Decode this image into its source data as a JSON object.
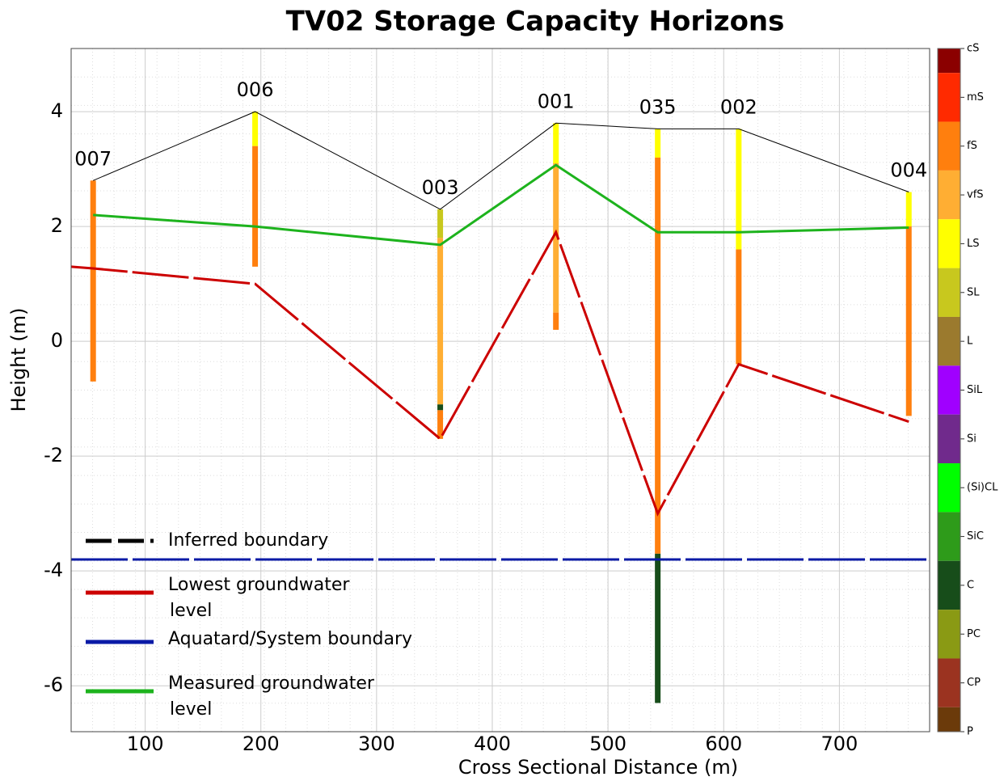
{
  "chart_data": {
    "type": "cross-section",
    "title": "TV02 Storage Capacity Horizons",
    "x_label": "Cross Sectional Distance (m)",
    "y_label": "Height (m)",
    "xlim": [
      36,
      778
    ],
    "ylim": [
      -6.8,
      5.1
    ],
    "xticks": [
      100,
      200,
      300,
      400,
      500,
      600,
      700
    ],
    "yticks": [
      -6,
      -4,
      -2,
      0,
      2,
      4
    ],
    "grid": true,
    "lines": [
      {
        "color": "#000000",
        "style": "solid",
        "width": 1,
        "x": [
          55,
          195,
          355,
          455,
          543,
          613,
          760
        ],
        "values": [
          2.8,
          4.0,
          2.3,
          3.8,
          3.7,
          3.7,
          2.6
        ]
      },
      {
        "color": "#1db31d",
        "style": "solid",
        "width": 3,
        "x": [
          55,
          195,
          355,
          455,
          543,
          613,
          760
        ],
        "values": [
          2.2,
          2.0,
          1.68,
          3.07,
          1.9,
          1.9,
          1.98
        ]
      },
      {
        "color": "#cc0000",
        "style": "dashed",
        "width": 3,
        "x": [
          36,
          55,
          195,
          355,
          455,
          543,
          613,
          760
        ],
        "values": [
          1.3,
          1.27,
          1.0,
          -1.7,
          1.9,
          -3.0,
          -0.4,
          -1.4
        ]
      },
      {
        "color": "#0a1aa6",
        "style": "dashed",
        "width": 3,
        "x": [
          36,
          778
        ],
        "values": [
          -3.8,
          -3.8
        ]
      }
    ],
    "legend": [
      {
        "label": [
          "Inferred boundary"
        ],
        "color": "#000000",
        "style": "dashed"
      },
      {
        "label": [
          "Lowest groundwater",
          "level"
        ],
        "color": "#cc0000",
        "style": "solid"
      },
      {
        "label": [
          "Aquatard/System boundary"
        ],
        "color": "#0a1aa6",
        "style": "solid"
      },
      {
        "label": [
          "Measured groundwater",
          "level"
        ],
        "color": "#1db31d",
        "style": "solid"
      }
    ],
    "boreholes": [
      {
        "name": "007",
        "x": 55,
        "layers": [
          {
            "top": 2.8,
            "bottom": -0.7,
            "class": "fS"
          }
        ]
      },
      {
        "name": "006",
        "x": 195,
        "layers": [
          {
            "top": 4.0,
            "bottom": 3.4,
            "class": "LS"
          },
          {
            "top": 3.4,
            "bottom": 1.3,
            "class": "fS"
          }
        ]
      },
      {
        "name": "003",
        "x": 355,
        "layers": [
          {
            "top": 2.3,
            "bottom": 1.8,
            "class": "SL"
          },
          {
            "top": 1.8,
            "bottom": -1.1,
            "class": "vfS"
          },
          {
            "top": -1.1,
            "bottom": -1.2,
            "class": "C"
          },
          {
            "top": -1.2,
            "bottom": -1.7,
            "class": "fS"
          }
        ]
      },
      {
        "name": "001",
        "x": 455,
        "layers": [
          {
            "top": 3.8,
            "bottom": 3.1,
            "class": "LS"
          },
          {
            "top": 3.1,
            "bottom": 0.5,
            "class": "vfS"
          },
          {
            "top": 0.5,
            "bottom": 0.2,
            "class": "fS"
          }
        ]
      },
      {
        "name": "035",
        "x": 543,
        "layers": [
          {
            "top": 3.7,
            "bottom": 3.2,
            "class": "LS"
          },
          {
            "top": 3.2,
            "bottom": -3.7,
            "class": "fS"
          },
          {
            "top": -3.7,
            "bottom": -6.3,
            "class": "C"
          }
        ]
      },
      {
        "name": "002",
        "x": 613,
        "layers": [
          {
            "top": 3.7,
            "bottom": 1.6,
            "class": "LS"
          },
          {
            "top": 1.6,
            "bottom": -0.4,
            "class": "fS"
          }
        ]
      },
      {
        "name": "004",
        "x": 760,
        "layers": [
          {
            "top": 2.6,
            "bottom": 2.0,
            "class": "LS"
          },
          {
            "top": 2.0,
            "bottom": -1.3,
            "class": "fS"
          }
        ]
      }
    ],
    "colorbar": [
      {
        "label": "cS",
        "color": "#8b0000"
      },
      {
        "label": "mS",
        "color": "#ff2a00"
      },
      {
        "label": "fS",
        "color": "#ff7f0e"
      },
      {
        "label": "vfS",
        "color": "#ffae33"
      },
      {
        "label": "LS",
        "color": "#ffff00"
      },
      {
        "label": "SL",
        "color": "#c8c81e"
      },
      {
        "label": "L",
        "color": "#9b7a2e"
      },
      {
        "label": "SiL",
        "color": "#a000ff"
      },
      {
        "label": "Si",
        "color": "#702a8c"
      },
      {
        "label": "(Si)CL",
        "color": "#00ff00"
      },
      {
        "label": "SiC",
        "color": "#2e9b1a"
      },
      {
        "label": "C",
        "color": "#174d1a"
      },
      {
        "label": "PC",
        "color": "#8a9a14"
      },
      {
        "label": "CP",
        "color": "#9b3320"
      },
      {
        "label": "P",
        "color": "#6b3a0a"
      }
    ]
  }
}
